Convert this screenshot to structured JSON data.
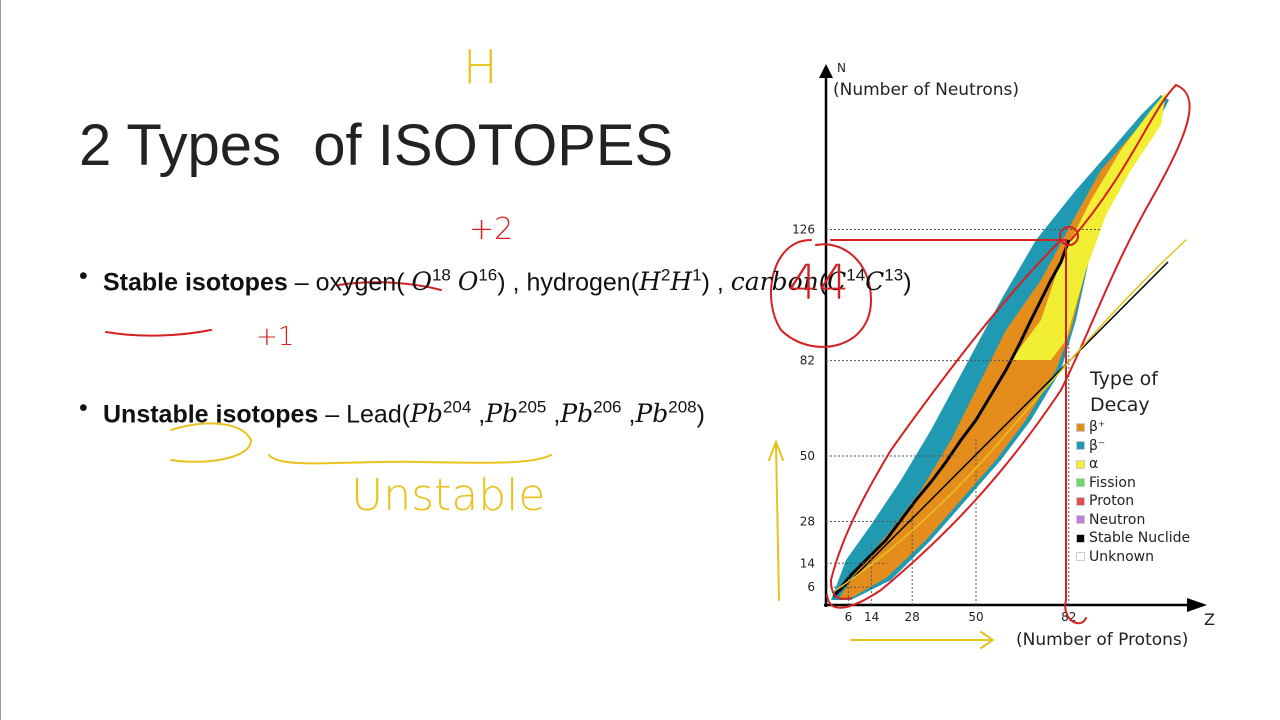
{
  "slide": {
    "title": "2 Types  of ISOTOPES",
    "bullets": [
      [
        {
          "text": "Stable isotopes",
          "bold": true
        },
        {
          "text": " – "
        },
        {
          "text": "oxygen"
        },
        {
          "text": "( "
        },
        {
          "text": "O",
          "math": true,
          "sup": "18"
        },
        {
          "text": " "
        },
        {
          "text": "O",
          "math": true,
          "sup": "16"
        },
        {
          "text": ") , "
        },
        {
          "text": "hydrogen"
        },
        {
          "text": "("
        },
        {
          "text": "H",
          "math": true,
          "sup": "2"
        },
        {
          "text": "H",
          "math": true,
          "sup": "1"
        },
        {
          "text": ") , "
        },
        {
          "text": "carbon",
          "math": true
        },
        {
          "text": "("
        },
        {
          "text": "C",
          "math": true,
          "sup": "14"
        },
        {
          "text": "C",
          "math": true,
          "sup": "13"
        },
        {
          "text": ")"
        }
      ],
      [
        {
          "text": "Unstable isotopes",
          "bold": true
        },
        {
          "text": " – "
        },
        {
          "text": "Lead("
        },
        {
          "text": "Pb",
          "math": true,
          "sup": "204"
        },
        {
          "text": " ,"
        },
        {
          "text": "Pb",
          "math": true,
          "sup": "205"
        },
        {
          "text": " ,"
        },
        {
          "text": "Pb",
          "math": true,
          "sup": "206"
        },
        {
          "text": " ,"
        },
        {
          "text": "Pb",
          "math": true,
          "sup": "208"
        },
        {
          "text": ")"
        }
      ]
    ],
    "annotations": [
      {
        "text": "H",
        "color": "#e8c21e"
      },
      {
        "text": "+2",
        "color": "#d42020"
      },
      {
        "text": "+1",
        "color": "#d42020"
      },
      {
        "text": "44",
        "color": "#d42020"
      },
      {
        "text": "Unstable",
        "color": "#e8c21e"
      }
    ]
  },
  "chart": {
    "y_axis_letter": "N",
    "y_label": "(Number of Neutrons)",
    "x_axis_letter": "Z",
    "x_label": "(Number of Protons)",
    "x_ticks": [
      6,
      14,
      28,
      50,
      82
    ],
    "y_ticks": [
      6,
      14,
      28,
      50,
      82,
      126
    ],
    "legend": {
      "title": "Type of Decay",
      "items": [
        {
          "label": "β⁺",
          "color": "#e48c1c"
        },
        {
          "label": "β⁻",
          "color": "#1f9ab2"
        },
        {
          "label": "α",
          "color": "#f2ee34"
        },
        {
          "label": "Fission",
          "color": "#6bdc62"
        },
        {
          "label": "Proton",
          "color": "#e0504e"
        },
        {
          "label": "Neutron",
          "color": "#c07ee0"
        },
        {
          "label": "Stable Nuclide",
          "color": "#000000"
        },
        {
          "label": "Unknown",
          "color": "#ffffff"
        }
      ]
    }
  }
}
